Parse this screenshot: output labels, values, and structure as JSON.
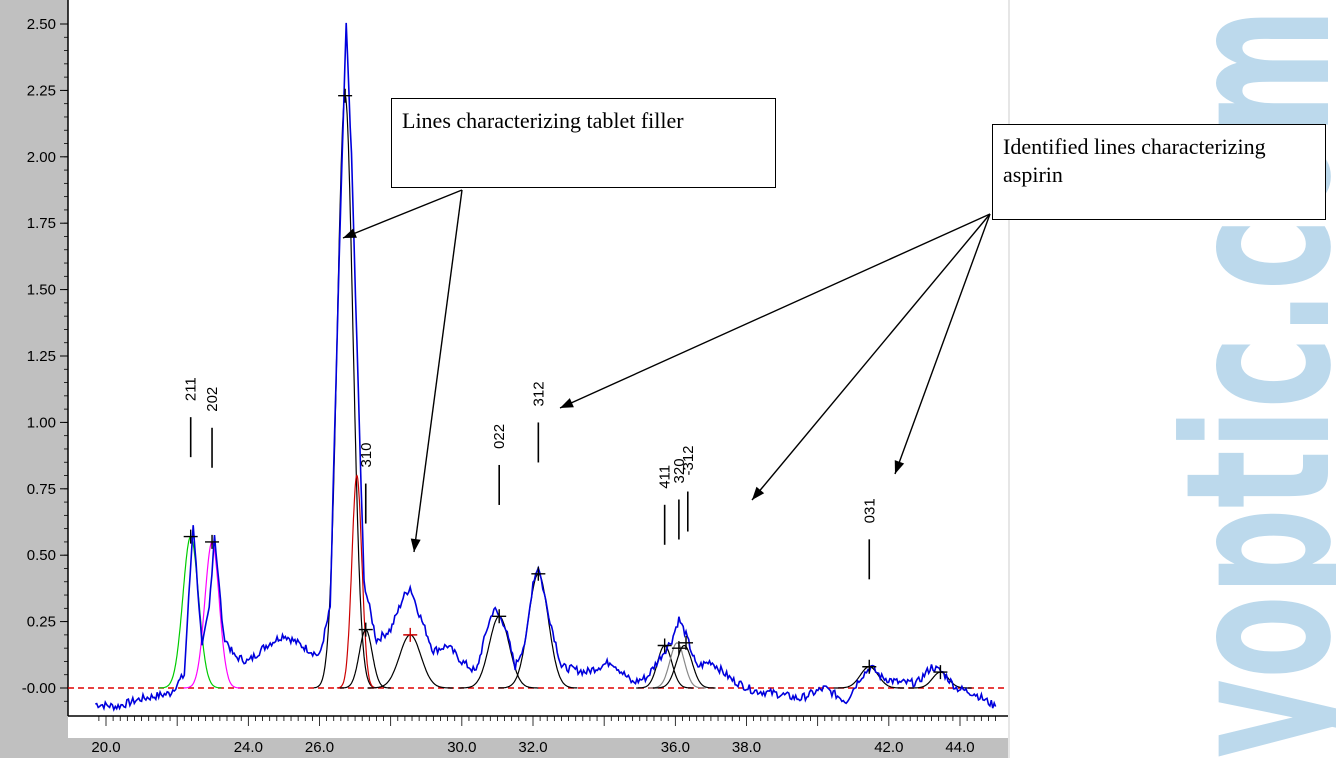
{
  "chart_data": {
    "type": "line",
    "ylim": [
      -0.1,
      2.55
    ],
    "xlim": [
      19.6,
      45.2
    ],
    "y_ticks": [
      "-0.00",
      "0.25",
      "0.50",
      "0.75",
      "1.00",
      "1.25",
      "1.50",
      "1.75",
      "2.00",
      "2.25",
      "2.50"
    ],
    "y_tick_values": [
      0,
      0.25,
      0.5,
      0.75,
      1.0,
      1.25,
      1.5,
      1.75,
      2.0,
      2.25,
      2.5
    ],
    "x_ticks": [
      "20.0",
      "24.0",
      "26.0",
      "30.0",
      "32.0",
      "36.0",
      "38.0",
      "42.0",
      "44.0"
    ],
    "x_tick_values": [
      20,
      24,
      26,
      30,
      32,
      36,
      38,
      42,
      44
    ],
    "series": [
      {
        "values": [
          [
            19.7,
            -0.06
          ],
          [
            20.3,
            -0.07
          ],
          [
            21.0,
            -0.04
          ],
          [
            21.8,
            -0.02
          ],
          [
            22.2,
            0.05
          ],
          [
            22.45,
            0.62
          ],
          [
            22.7,
            0.15
          ],
          [
            22.9,
            0.3
          ],
          [
            23.05,
            0.58
          ],
          [
            23.3,
            0.2
          ],
          [
            23.6,
            0.12
          ],
          [
            24.0,
            0.1
          ],
          [
            24.5,
            0.16
          ],
          [
            25.0,
            0.2
          ],
          [
            25.5,
            0.16
          ],
          [
            26.0,
            0.12
          ],
          [
            26.3,
            0.3
          ],
          [
            26.55,
            1.6
          ],
          [
            26.75,
            2.5
          ],
          [
            26.9,
            2.0
          ],
          [
            27.05,
            1.3
          ],
          [
            27.25,
            0.4
          ],
          [
            27.6,
            0.18
          ],
          [
            28.0,
            0.22
          ],
          [
            28.35,
            0.34
          ],
          [
            28.55,
            0.38
          ],
          [
            28.8,
            0.28
          ],
          [
            29.2,
            0.14
          ],
          [
            29.6,
            0.16
          ],
          [
            30.0,
            0.1
          ],
          [
            30.4,
            0.06
          ],
          [
            30.7,
            0.22
          ],
          [
            30.9,
            0.3
          ],
          [
            31.2,
            0.24
          ],
          [
            31.5,
            0.08
          ],
          [
            31.8,
            0.18
          ],
          [
            32.0,
            0.4
          ],
          [
            32.15,
            0.46
          ],
          [
            32.4,
            0.3
          ],
          [
            32.8,
            0.08
          ],
          [
            33.5,
            0.06
          ],
          [
            34.2,
            0.1
          ],
          [
            34.8,
            0.02
          ],
          [
            35.2,
            0.04
          ],
          [
            35.6,
            0.12
          ],
          [
            35.9,
            0.18
          ],
          [
            36.1,
            0.26
          ],
          [
            36.3,
            0.2
          ],
          [
            36.6,
            0.08
          ],
          [
            37.0,
            0.1
          ],
          [
            37.6,
            0.03
          ],
          [
            38.2,
            -0.01
          ],
          [
            38.8,
            -0.02
          ],
          [
            39.5,
            -0.04
          ],
          [
            40.2,
            0.0
          ],
          [
            40.8,
            -0.05
          ],
          [
            41.2,
            0.04
          ],
          [
            41.5,
            0.08
          ],
          [
            41.8,
            0.04
          ],
          [
            42.3,
            0.02
          ],
          [
            42.8,
            0.02
          ],
          [
            43.2,
            0.08
          ],
          [
            43.5,
            0.06
          ],
          [
            43.9,
            0.0
          ],
          [
            44.4,
            -0.02
          ],
          [
            45.0,
            -0.07
          ]
        ]
      }
    ],
    "fitted_peaks": [
      {
        "center": 22.38,
        "height": 0.57,
        "width": 0.22,
        "color": "#00cc00"
      },
      {
        "center": 22.98,
        "height": 0.55,
        "width": 0.2,
        "color": "#ff00ff"
      },
      {
        "center": 26.72,
        "height": 2.23,
        "width": 0.22,
        "color": "#000000"
      },
      {
        "center": 27.05,
        "height": 0.8,
        "width": 0.14,
        "color": "#cc0000"
      },
      {
        "center": 27.3,
        "height": 0.22,
        "width": 0.18,
        "color": "#000000"
      },
      {
        "center": 28.55,
        "height": 0.2,
        "width": 0.3,
        "color": "#000000"
      },
      {
        "center": 31.05,
        "height": 0.27,
        "width": 0.28,
        "color": "#000000"
      },
      {
        "center": 32.15,
        "height": 0.43,
        "width": 0.28,
        "color": "#000000"
      },
      {
        "center": 35.7,
        "height": 0.16,
        "width": 0.2,
        "color": "#000000"
      },
      {
        "center": 36.05,
        "height": 0.17,
        "width": 0.2,
        "color": "#888888"
      },
      {
        "center": 36.25,
        "height": 0.16,
        "width": 0.22,
        "color": "#000000"
      },
      {
        "center": 41.45,
        "height": 0.08,
        "width": 0.25,
        "color": "#000000"
      },
      {
        "center": 43.45,
        "height": 0.06,
        "width": 0.22,
        "color": "#000000"
      }
    ],
    "peak_markers": [
      [
        22.38,
        0.57
      ],
      [
        22.98,
        0.55
      ],
      [
        26.72,
        2.23
      ],
      [
        27.3,
        0.22
      ],
      [
        28.55,
        0.2
      ],
      [
        31.05,
        0.27
      ],
      [
        32.15,
        0.43
      ],
      [
        35.7,
        0.16
      ],
      [
        36.1,
        0.15
      ],
      [
        36.3,
        0.17
      ],
      [
        41.45,
        0.08
      ],
      [
        43.45,
        0.06
      ]
    ],
    "peak_labels": [
      {
        "text": "211",
        "x": 22.38,
        "y": 1.08
      },
      {
        "text": "202",
        "x": 22.98,
        "y": 1.04
      },
      {
        "text": "310",
        "x": 27.3,
        "y": 0.83
      },
      {
        "text": "022",
        "x": 31.05,
        "y": 0.9
      },
      {
        "text": "312",
        "x": 32.15,
        "y": 1.06
      },
      {
        "text": "411",
        "x": 35.7,
        "y": 0.75
      },
      {
        "text": "320",
        "x": 36.1,
        "y": 0.77
      },
      {
        "text": "-312",
        "x": 36.35,
        "y": 0.8
      },
      {
        "text": "031",
        "x": 41.45,
        "y": 0.62
      }
    ],
    "annotations": [
      {
        "text": "Lines characterizing tablet filler"
      },
      {
        "text": "Identified lines characterizing aspirin"
      }
    ]
  },
  "watermark": {
    "text": "yoptic.com",
    "color": "#bcd9ec"
  }
}
